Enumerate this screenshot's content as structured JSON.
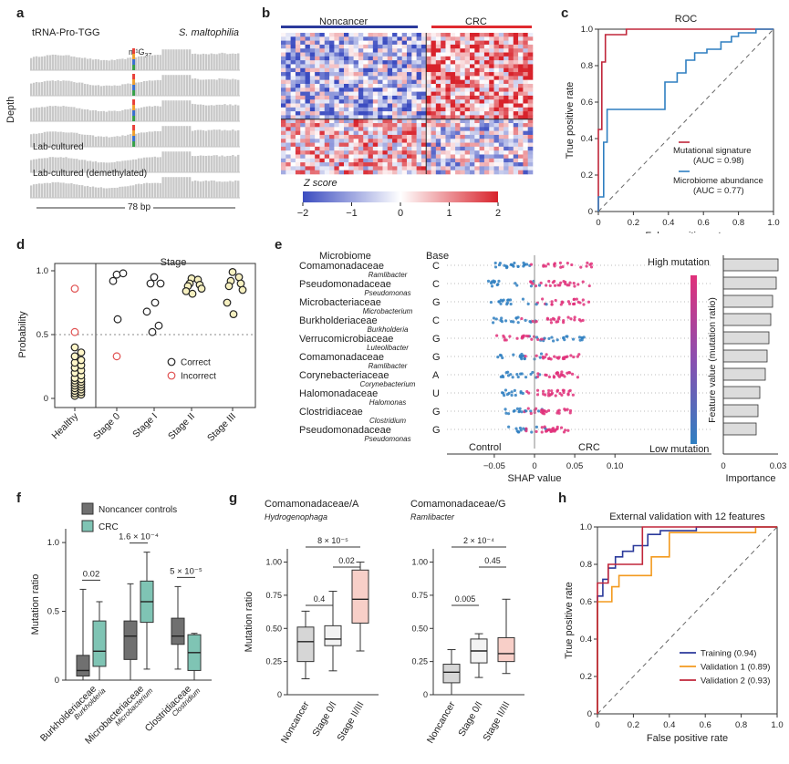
{
  "panels": {
    "a": {
      "letter": "a",
      "title_left": "tRNA-Pro-TGG",
      "title_right": "S. maltophilia",
      "modification": "m¹G",
      "modification_sub": "37",
      "ylabel": "Depth",
      "track_labels": [
        "",
        "",
        "",
        "",
        "Lab-cultured",
        "Lab-cultured (demethylated)"
      ],
      "scale": "78 bp"
    },
    "b": {
      "letter": "b",
      "group_left": "Noncancer",
      "group_right": "CRC",
      "colorbar_label": "Z score",
      "colorbar_ticks": [
        "−2",
        "−1",
        "0",
        "1",
        "2"
      ],
      "colors": {
        "noncancer": "#2b3a9b",
        "crc": "#e0292f",
        "low": "#3b4cc0",
        "high": "#d8222b"
      }
    },
    "c": {
      "letter": "c"
    },
    "d": {
      "letter": "d",
      "title": "Stage",
      "ylabel": "Probability",
      "yticks": [
        "0",
        "0.5",
        "1.0"
      ],
      "groups": [
        "Healthy",
        "Stage 0",
        "Stage I",
        "Stage II",
        "Stage III"
      ],
      "legend": [
        {
          "label": "Correct",
          "color": "#222222"
        },
        {
          "label": "Incorrect",
          "color": "#e05050"
        }
      ],
      "points": {
        "healthy_correct": [
          0.02,
          0.03,
          0.04,
          0.05,
          0.06,
          0.07,
          0.08,
          0.09,
          0.1,
          0.11,
          0.12,
          0.13,
          0.14,
          0.15,
          0.16,
          0.18,
          0.2,
          0.22,
          0.24,
          0.26,
          0.28,
          0.3,
          0.33,
          0.36,
          0.4
        ],
        "healthy_incorrect": [
          0.86,
          0.52
        ],
        "stage0_correct": [
          0.97,
          0.98,
          0.92,
          0.62
        ],
        "stage0_incorrect": [
          0.33
        ],
        "stageI_correct": [
          0.95,
          0.9,
          0.9,
          0.75,
          0.68,
          0.57,
          0.52
        ],
        "stageII_correct": [
          0.94,
          0.93,
          0.9,
          0.89,
          0.88,
          0.86,
          0.84,
          0.82
        ],
        "stageIII_correct": [
          0.99,
          0.95,
          0.92,
          0.9,
          0.88,
          0.85,
          0.75,
          0.66
        ]
      }
    },
    "e": {
      "letter": "e",
      "header_microbiome": "Microbiome",
      "header_base": "Base",
      "rows": [
        {
          "family": "Comamonadaceae",
          "genus": "Ramlibacter",
          "base": "C"
        },
        {
          "family": "Pseudomonadaceae",
          "genus": "Pseudomonas",
          "base": "C"
        },
        {
          "family": "Microbacteriaceae",
          "genus": "Microbacterium",
          "base": "G"
        },
        {
          "family": "Burkholderiaceae",
          "genus": "Burkholderia",
          "base": "C"
        },
        {
          "family": "Verrucomicrobiaceae",
          "genus": "Luteolibacter",
          "base": "G"
        },
        {
          "family": "Comamonadaceae",
          "genus": "Ramlibacter",
          "base": "G"
        },
        {
          "family": "Corynebacteriaceae",
          "genus": "Corynebacterium",
          "base": "A"
        },
        {
          "family": "Halomonadaceae",
          "genus": "Halomonas",
          "base": "U"
        },
        {
          "family": "Clostridiaceae",
          "genus": "Clostridium",
          "base": "G"
        },
        {
          "family": "Pseudomonadaceae",
          "genus": "Pseudomonas",
          "base": "G"
        }
      ],
      "importance": [
        0.03,
        0.029,
        0.027,
        0.026,
        0.025,
        0.024,
        0.023,
        0.02,
        0.019,
        0.018
      ],
      "importance_xlabel": "Importance",
      "importance_ticks": [
        "0",
        "0.03"
      ],
      "shap_xlabel": "SHAP value",
      "shap_ticks": [
        "−0.05",
        "0",
        "0.05",
        "0.10"
      ],
      "control_label": "Control",
      "crc_label": "CRC",
      "high_label": "High mutation",
      "low_label": "Low mutation",
      "feature_label": "Feature value (mutation ratio)"
    },
    "f": {
      "letter": "f",
      "ylabel": "Mutation ratio",
      "yticks": [
        "0",
        "0.5",
        "1.0"
      ],
      "legend": [
        {
          "label": "Noncancer controls",
          "color": "#707070"
        },
        {
          "label": "CRC",
          "color": "#7fc4b4"
        }
      ],
      "groups": [
        {
          "family": "Burkholderiaceae",
          "genus": "Burkholderia",
          "p": "0.02"
        },
        {
          "family": "Microbacteriaceae",
          "genus": "Microbacterium",
          "p": "1.6 × 10⁻⁴"
        },
        {
          "family": "Clostridiaceae",
          "genus": "Clostridium",
          "p": "5 × 10⁻⁵"
        }
      ]
    },
    "g": {
      "letter": "g",
      "left_title": "Comamonadaceae/A",
      "left_genus": "Hydrogenophaga",
      "right_title": "Comamonadaceae/G",
      "right_genus": "Ramlibacter",
      "ylabel": "Mutation ratio",
      "yticks": [
        "0",
        "0.25",
        "0.50",
        "0.75",
        "1.00"
      ],
      "categories": [
        "Noncancer",
        "Stage 0/I",
        "Stage II/III"
      ],
      "left_p": [
        "8 × 10⁻⁵",
        "0.4",
        "0.02"
      ],
      "right_p": [
        "2 × 10⁻⁴",
        "0.005",
        "0.45"
      ]
    },
    "h": {
      "letter": "h"
    }
  },
  "chart_data": [
    {
      "type": "line",
      "panel": "c",
      "title": "ROC",
      "xlabel": "False positive rate",
      "ylabel": "True positive rate",
      "xlim": [
        0,
        1
      ],
      "ylim": [
        0,
        1
      ],
      "ticks": [
        "0",
        "0.2",
        "0.4",
        "0.6",
        "0.8",
        "1.0"
      ],
      "series": [
        {
          "name": "Mutational signature",
          "auc": "(AUC = 0.98)",
          "color": "#c0263a",
          "x": [
            0,
            0,
            0.02,
            0.02,
            0.04,
            0.04,
            0.16,
            0.16,
            1
          ],
          "y": [
            0,
            0.45,
            0.45,
            0.82,
            0.82,
            0.97,
            0.97,
            1,
            1
          ]
        },
        {
          "name": "Microbiome abundance",
          "auc": "(AUC = 0.77)",
          "color": "#2f7fc1",
          "x": [
            0,
            0,
            0.03,
            0.03,
            0.05,
            0.05,
            0.38,
            0.38,
            0.45,
            0.45,
            0.5,
            0.5,
            0.55,
            0.55,
            0.62,
            0.62,
            0.7,
            0.7,
            0.76,
            0.76,
            0.8,
            0.8,
            0.9,
            0.9,
            1
          ],
          "y": [
            0,
            0.08,
            0.08,
            0.38,
            0.38,
            0.56,
            0.56,
            0.71,
            0.71,
            0.76,
            0.76,
            0.83,
            0.83,
            0.87,
            0.87,
            0.89,
            0.89,
            0.93,
            0.93,
            0.96,
            0.96,
            0.98,
            0.98,
            1,
            1
          ]
        }
      ]
    },
    {
      "type": "line",
      "panel": "h",
      "title": "External validation with 12 features",
      "xlabel": "False positive rate",
      "ylabel": "True positive rate",
      "xlim": [
        0,
        1
      ],
      "ylim": [
        0,
        1
      ],
      "ticks": [
        "0",
        "0.2",
        "0.4",
        "0.6",
        "0.8",
        "1.0"
      ],
      "series": [
        {
          "name": "Training (0.94)",
          "color": "#2b3a9b",
          "x": [
            0,
            0,
            0.03,
            0.03,
            0.06,
            0.06,
            0.1,
            0.1,
            0.14,
            0.14,
            0.2,
            0.2,
            0.28,
            0.28,
            0.35,
            0.35,
            0.55,
            0.55,
            1
          ],
          "y": [
            0,
            0.63,
            0.63,
            0.72,
            0.72,
            0.78,
            0.78,
            0.84,
            0.84,
            0.87,
            0.87,
            0.9,
            0.9,
            0.96,
            0.96,
            0.98,
            0.98,
            1,
            1
          ]
        },
        {
          "name": "Validation 1 (0.89)",
          "color": "#f39a1e",
          "x": [
            0,
            0,
            0.08,
            0.08,
            0.12,
            0.12,
            0.3,
            0.3,
            0.4,
            0.4,
            0.88,
            0.88,
            1
          ],
          "y": [
            0,
            0.6,
            0.6,
            0.68,
            0.68,
            0.74,
            0.74,
            0.84,
            0.84,
            0.97,
            0.97,
            1,
            1
          ]
        },
        {
          "name": "Validation 2 (0.93)",
          "color": "#c0263a",
          "x": [
            0,
            0,
            0.06,
            0.06,
            0.25,
            0.25,
            1
          ],
          "y": [
            0,
            0.7,
            0.7,
            0.8,
            0.8,
            1,
            1
          ]
        }
      ]
    },
    {
      "type": "bar",
      "panel": "f",
      "note": "box plots",
      "categories": [
        "Burkholderiaceae",
        "Microbacteriaceae",
        "Clostridiaceae"
      ],
      "series": [
        {
          "name": "Noncancer controls",
          "boxes": [
            {
              "min": 0,
              "q1": 0.03,
              "med": 0.07,
              "q3": 0.18,
              "max": 0.66
            },
            {
              "min": 0,
              "q1": 0.15,
              "med": 0.32,
              "q3": 0.43,
              "max": 0.7
            },
            {
              "min": 0.08,
              "q1": 0.26,
              "med": 0.32,
              "q3": 0.45,
              "max": 0.68
            }
          ]
        },
        {
          "name": "CRC",
          "boxes": [
            {
              "min": 0,
              "q1": 0.1,
              "med": 0.21,
              "q3": 0.43,
              "max": 0.57
            },
            {
              "min": 0.08,
              "q1": 0.42,
              "med": 0.57,
              "q3": 0.72,
              "max": 0.93
            },
            {
              "min": 0,
              "q1": 0.07,
              "med": 0.2,
              "q3": 0.33,
              "max": 0.34
            }
          ]
        }
      ]
    },
    {
      "type": "bar",
      "panel": "g",
      "note": "box plots",
      "categories": [
        "Noncancer",
        "Stage 0/I",
        "Stage II/III"
      ],
      "series": [
        {
          "name": "Comamonadaceae/A",
          "boxes": [
            {
              "min": 0.12,
              "q1": 0.25,
              "med": 0.4,
              "q3": 0.51,
              "max": 0.63
            },
            {
              "min": 0.18,
              "q1": 0.37,
              "med": 0.42,
              "q3": 0.52,
              "max": 0.78
            },
            {
              "min": 0.33,
              "q1": 0.54,
              "med": 0.72,
              "q3": 0.94,
              "max": 1.0
            }
          ]
        },
        {
          "name": "Comamonadaceae/G",
          "boxes": [
            {
              "min": 0.0,
              "q1": 0.09,
              "med": 0.17,
              "q3": 0.23,
              "max": 0.34
            },
            {
              "min": 0.13,
              "q1": 0.24,
              "med": 0.33,
              "q3": 0.42,
              "max": 0.46
            },
            {
              "min": 0.16,
              "q1": 0.25,
              "med": 0.31,
              "q3": 0.43,
              "max": 0.72
            }
          ]
        }
      ]
    }
  ]
}
